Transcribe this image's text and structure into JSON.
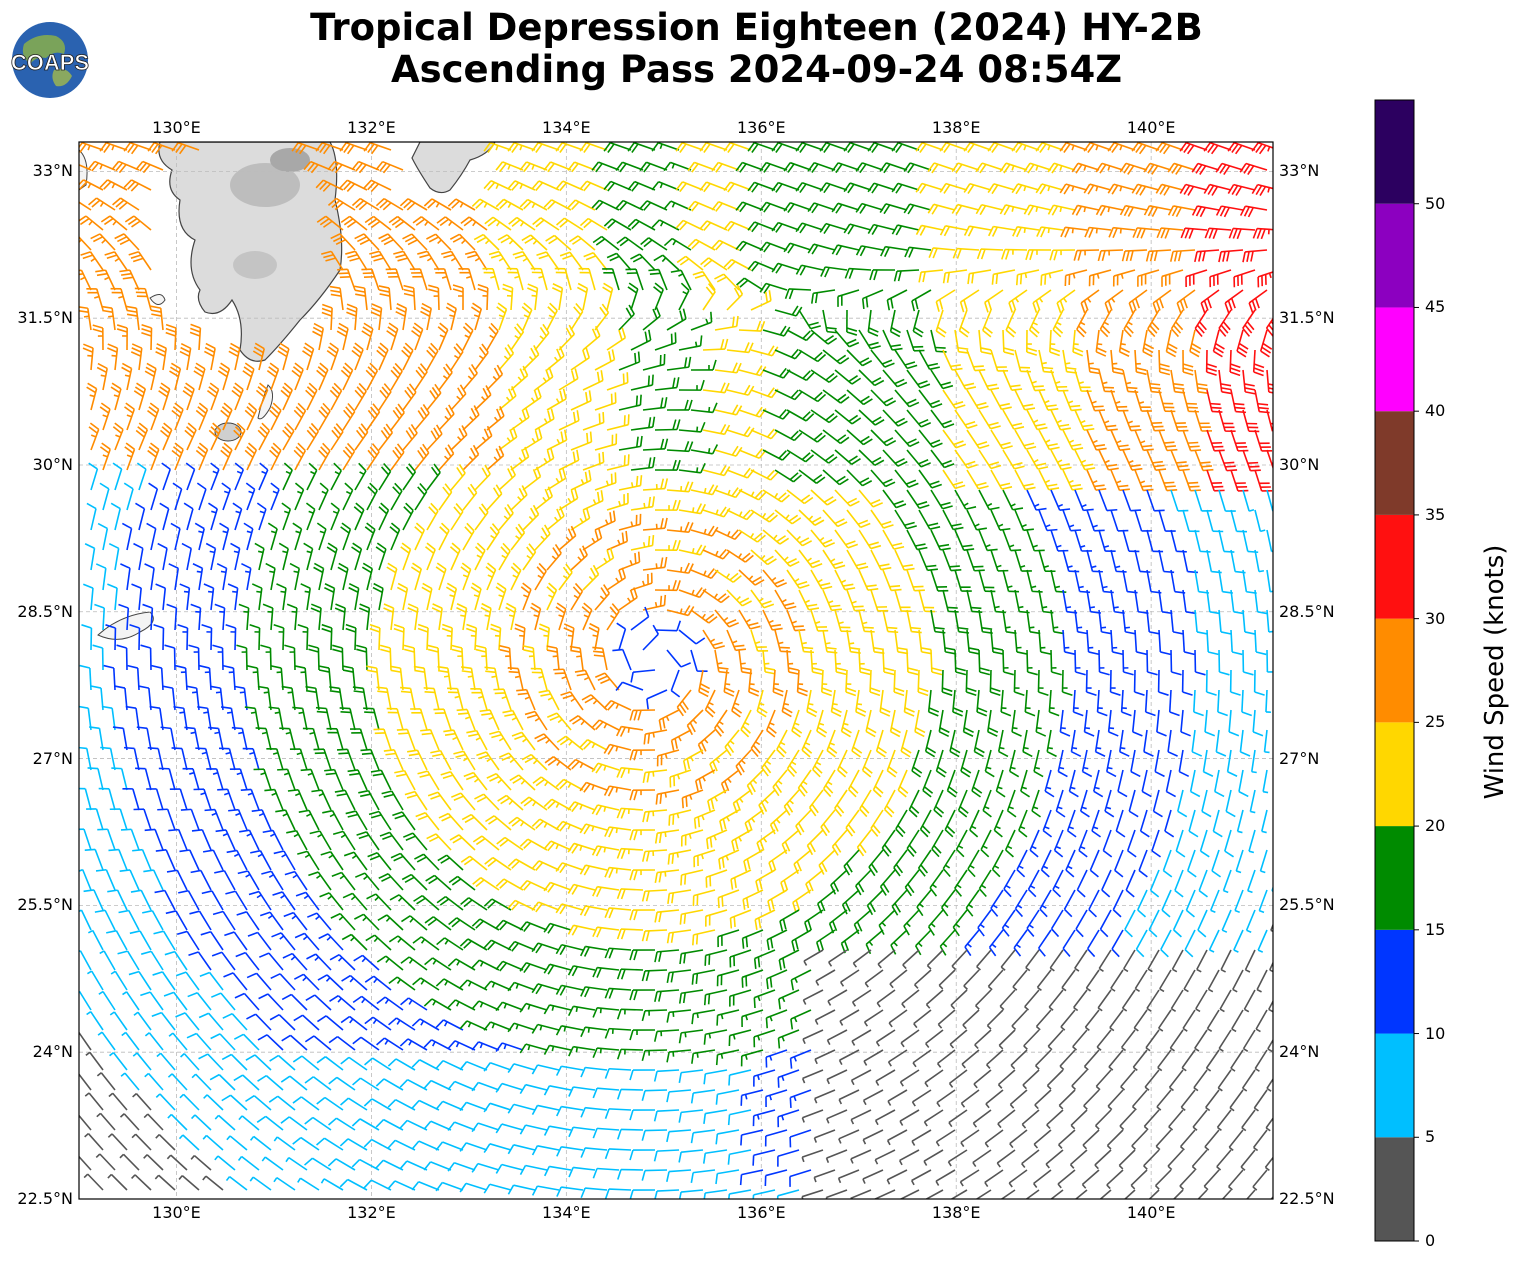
{
  "title": {
    "line1": "Tropical Depression Eighteen (2024) HY-2B",
    "line2": "Ascending Pass 2024-09-24 08:54Z"
  },
  "logo": {
    "text": "COAPS"
  },
  "map": {
    "lon_range": [
      129,
      141.25
    ],
    "lat_range": [
      22.5,
      33.3
    ],
    "lon_ticks": [
      "130°E",
      "132°E",
      "134°E",
      "136°E",
      "138°E",
      "140°E"
    ],
    "lat_ticks": [
      "33°N",
      "31.5°N",
      "30°N",
      "28.5°N",
      "27°N",
      "25.5°N",
      "24°N",
      "22.5°N"
    ],
    "grid": true,
    "land": "Kyushu and southern Japan islands (upper-left), Shikoku tip (top), Amami islands (left)",
    "center": {
      "lon": 134.9,
      "lat": 28.0
    },
    "wind_barbs": "cyclonic circulation around the depression; strongest winds (25-35 kt) northeast and south of center, calm area southeast"
  },
  "colorbar": {
    "label": "Wind Speed (knots)",
    "ticks": [
      "0",
      "5",
      "10",
      "15",
      "20",
      "25",
      "30",
      "35",
      "40",
      "45",
      "50"
    ],
    "colors": [
      "#555555",
      "#00bfff",
      "#0036ff",
      "#008b00",
      "#ffd700",
      "#ff8c00",
      "#ff1010",
      "#7f3a2a",
      "#ff00ff",
      "#8c00c0",
      "#2c0060"
    ]
  }
}
